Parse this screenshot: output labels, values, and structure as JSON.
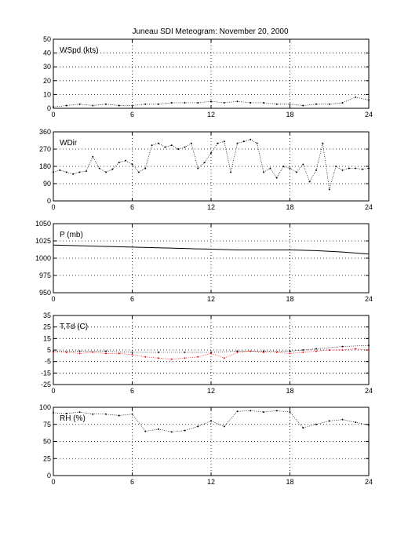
{
  "chart_data": [
    {
      "type": "scatter",
      "title": "Juneau SDI Meteogram:  November 20, 2000",
      "label": "WSpd (kts)",
      "xlim": [
        0,
        24
      ],
      "xticks": [
        "0",
        "6",
        "12",
        "18",
        "24"
      ],
      "ylim": [
        0,
        50
      ],
      "yticks": [
        "0",
        "10",
        "20",
        "30",
        "40",
        "50"
      ],
      "grid": true,
      "series": [
        {
          "color": "#000000",
          "x": [
            0,
            1,
            2,
            3,
            4,
            5,
            6,
            7,
            8,
            9,
            10,
            11,
            12,
            13,
            14,
            15,
            16,
            17,
            18,
            19,
            20,
            21,
            22,
            23,
            24
          ],
          "y": [
            1,
            2,
            3,
            2,
            3,
            2,
            2,
            3,
            3,
            4,
            4,
            4,
            5,
            4,
            5,
            4,
            4,
            3,
            3,
            2,
            3,
            3,
            4,
            8,
            6
          ]
        }
      ]
    },
    {
      "type": "scatter",
      "label": "WDir",
      "xlim": [
        0,
        24
      ],
      "xticks": [
        "0",
        "6",
        "12",
        "18",
        "24"
      ],
      "ylim": [
        0,
        360
      ],
      "yticks": [
        "0",
        "90",
        "180",
        "270",
        "360"
      ],
      "grid": true,
      "series": [
        {
          "color": "#000000",
          "x": [
            0,
            0.5,
            1,
            1.5,
            2,
            2.5,
            3,
            3.5,
            4,
            4.5,
            5,
            5.5,
            6,
            6.5,
            7,
            7.5,
            8,
            8.5,
            9,
            9.5,
            10,
            10.5,
            11,
            11.5,
            12,
            12.5,
            13,
            13.5,
            14,
            14.5,
            15,
            15.5,
            16,
            16.5,
            17,
            17.5,
            18,
            18.5,
            19,
            19.5,
            20,
            20.5,
            21,
            21.5,
            22,
            22.5,
            23,
            23.5,
            24
          ],
          "y": [
            150,
            160,
            150,
            140,
            150,
            155,
            230,
            170,
            150,
            165,
            200,
            210,
            190,
            150,
            170,
            290,
            300,
            280,
            290,
            270,
            280,
            300,
            170,
            200,
            250,
            300,
            310,
            150,
            300,
            310,
            320,
            300,
            150,
            170,
            120,
            180,
            170,
            150,
            190,
            100,
            160,
            300,
            60,
            180,
            160,
            170,
            170,
            165,
            170
          ]
        }
      ]
    },
    {
      "type": "line",
      "label": "P (mb)",
      "xlim": [
        0,
        24
      ],
      "xticks": [
        "0",
        "6",
        "12",
        "18",
        "24"
      ],
      "ylim": [
        950,
        1050
      ],
      "yticks": [
        "950",
        "975",
        "1000",
        "1025",
        "1050"
      ],
      "grid": true,
      "series": [
        {
          "color": "#000000",
          "x": [
            0,
            2,
            4,
            6,
            8,
            10,
            12,
            14,
            16,
            18,
            20,
            22,
            24
          ],
          "y": [
            1019,
            1018,
            1017,
            1016,
            1015,
            1014,
            1013,
            1012,
            1012,
            1012,
            1011,
            1009,
            1006
          ]
        }
      ]
    },
    {
      "type": "scatter",
      "label": "T,Td (C)",
      "xlim": [
        0,
        24
      ],
      "xticks": [
        "0",
        "6",
        "12",
        "18",
        "24"
      ],
      "ylim": [
        -25,
        35
      ],
      "yticks": [
        "-25",
        "-15",
        "-5",
        "5",
        "15",
        "25",
        "35"
      ],
      "grid": true,
      "series": [
        {
          "color": "#000000",
          "x": [
            0,
            2,
            4,
            6,
            8,
            10,
            12,
            14,
            16,
            18,
            19,
            20,
            22,
            24
          ],
          "y": [
            4,
            4,
            4,
            3,
            3,
            3,
            3,
            4,
            4,
            4,
            5,
            6,
            8,
            9
          ]
        },
        {
          "color": "#ff0000",
          "x": [
            0,
            1,
            2,
            3,
            4,
            5,
            6,
            7,
            8,
            9,
            10,
            11,
            12,
            13,
            14,
            15,
            16,
            17,
            18,
            19,
            20,
            21,
            22,
            23,
            24
          ],
          "y": [
            3,
            3,
            2,
            3,
            2,
            2,
            1,
            -1,
            -2,
            -3,
            -2,
            -1,
            2,
            -2,
            3,
            4,
            3,
            3,
            2,
            3,
            4,
            5,
            5,
            6,
            5
          ]
        }
      ]
    },
    {
      "type": "scatter",
      "label": "RH (%)",
      "xlim": [
        0,
        24
      ],
      "xticks": [
        "0",
        "6",
        "12",
        "18",
        "24"
      ],
      "ylim": [
        0,
        100
      ],
      "yticks": [
        "0",
        "25",
        "50",
        "75",
        "100"
      ],
      "grid": true,
      "series": [
        {
          "color": "#000000",
          "x": [
            0,
            1,
            2,
            3,
            4,
            5,
            6,
            7,
            8,
            9,
            10,
            11,
            12,
            13,
            14,
            15,
            16,
            17,
            18,
            19,
            20,
            21,
            22,
            23,
            24
          ],
          "y": [
            92,
            91,
            93,
            90,
            90,
            88,
            90,
            65,
            68,
            64,
            66,
            72,
            80,
            72,
            94,
            95,
            93,
            95,
            93,
            70,
            75,
            80,
            82,
            78,
            74
          ]
        }
      ]
    }
  ]
}
